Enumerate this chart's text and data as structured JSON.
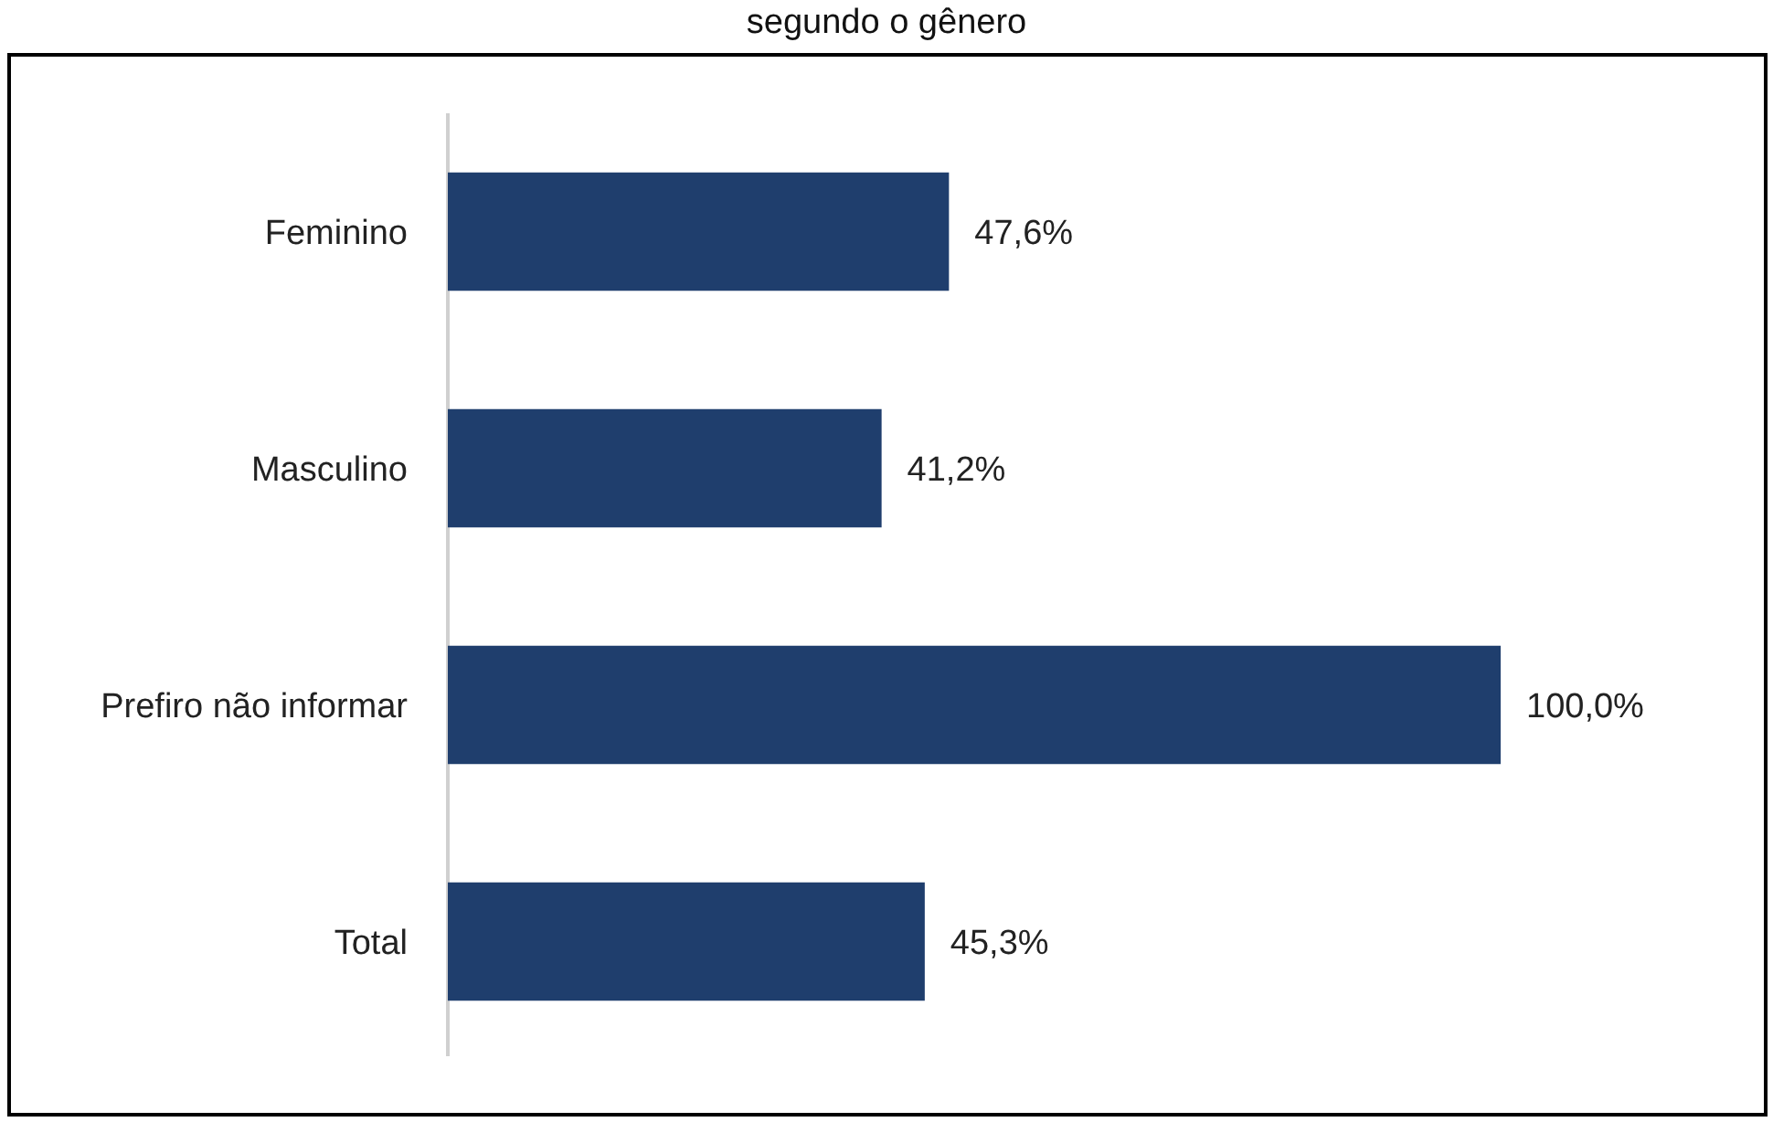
{
  "chart_data": {
    "type": "bar",
    "orientation": "horizontal",
    "title": "segundo o gênero",
    "categories": [
      "Feminino",
      "Masculino",
      "Prefiro não informar",
      "Total"
    ],
    "values": [
      47.6,
      41.2,
      100.0,
      45.3
    ],
    "value_labels": [
      "47,6%",
      "41,2%",
      "100,0%",
      "45,3%"
    ],
    "color": "#1f3e6d"
  }
}
